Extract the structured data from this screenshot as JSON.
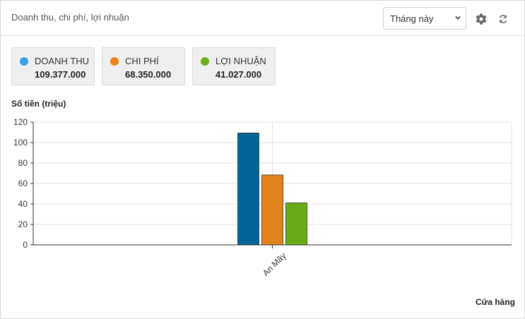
{
  "header": {
    "title": "Doanh thu, chi phí, lợi nhuận",
    "period_select": {
      "value": "Tháng này"
    }
  },
  "icons": {
    "settings": "gear-icon",
    "refresh": "refresh-icon",
    "dropdown": "chevron-down-icon"
  },
  "stats": [
    {
      "label": "DOANH THU",
      "value": "109.377.000",
      "color": "#3b9fe6"
    },
    {
      "label": "CHI PHÍ",
      "value": "68.350.000",
      "color": "#e8831c"
    },
    {
      "label": "LỢI NHUẬN",
      "value": "41.027.000",
      "color": "#6aae1e"
    }
  ],
  "chart_data": {
    "type": "bar",
    "ylabel": "Số tiền (triệu)",
    "xlabel": "Cửa hàng",
    "categories": [
      "An Mây"
    ],
    "series": [
      {
        "name": "DOANH THU",
        "values": [
          109.377
        ],
        "color": "#006494"
      },
      {
        "name": "CHI PHÍ",
        "values": [
          68.35
        ],
        "color": "#e0831c"
      },
      {
        "name": "LỢI NHUẬN",
        "values": [
          41.027
        ],
        "color": "#67ab18"
      }
    ],
    "ylim": [
      0,
      120
    ],
    "yticks": [
      0,
      20,
      40,
      60,
      80,
      100,
      120
    ],
    "grid": true
  }
}
